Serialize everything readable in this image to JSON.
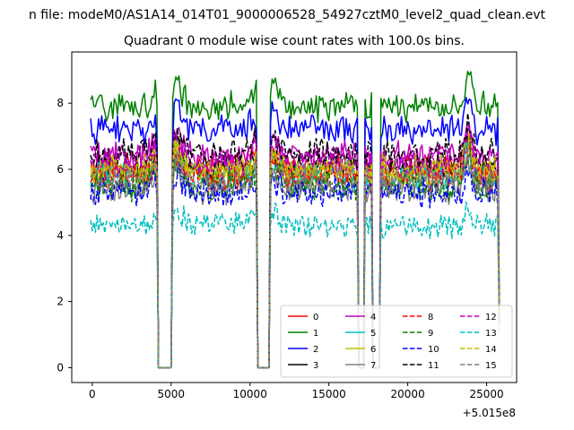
{
  "figure": {
    "suptitle": "n file: modeM0/AS1A14_014T01_9000006528_54927cztM0_level2_quad_clean.evt"
  },
  "chart_data": {
    "type": "line",
    "title": "Quadrant 0 module wise count rates with 100.0s bins.",
    "xlabel": "",
    "ylabel": "",
    "x_offset_label": "+5.015e8",
    "xlim": [
      -1300,
      26900
    ],
    "ylim": [
      -0.45,
      9.55
    ],
    "xticks": [
      0,
      5000,
      10000,
      15000,
      20000,
      25000
    ],
    "xtick_labels": [
      "0",
      "5000",
      "10000",
      "15000",
      "20000",
      "25000"
    ],
    "yticks": [
      0,
      2,
      4,
      6,
      8
    ],
    "ytick_labels": [
      "0",
      "2",
      "4",
      "6",
      "8"
    ],
    "x_range": [
      -100,
      25800
    ],
    "bin_seconds": 100,
    "gaps": [
      {
        "start": 4100,
        "end": 5100
      },
      {
        "start": 10450,
        "end": 11300
      },
      {
        "start": 16850,
        "end": 17300
      },
      {
        "start": 17700,
        "end": 18250
      }
    ],
    "legend": {
      "location": "lower-right",
      "ncol": 4
    },
    "series": [
      {
        "name": "0",
        "color": "#ff0000",
        "dash": "solid",
        "mean": 6.0,
        "amp": 0.3
      },
      {
        "name": "1",
        "color": "#008000",
        "dash": "solid",
        "mean": 7.9,
        "amp": 0.3
      },
      {
        "name": "2",
        "color": "#0000ff",
        "dash": "solid",
        "mean": 7.2,
        "amp": 0.3
      },
      {
        "name": "3",
        "color": "#000000",
        "dash": "solid",
        "mean": 6.1,
        "amp": 0.28
      },
      {
        "name": "4",
        "color": "#bf00bf",
        "dash": "solid",
        "mean": 6.4,
        "amp": 0.3
      },
      {
        "name": "5",
        "color": "#00bfbf",
        "dash": "solid",
        "mean": 5.8,
        "amp": 0.3
      },
      {
        "name": "6",
        "color": "#bfbf00",
        "dash": "solid",
        "mean": 5.9,
        "amp": 0.3
      },
      {
        "name": "7",
        "color": "#808080",
        "dash": "solid",
        "mean": 5.4,
        "amp": 0.3
      },
      {
        "name": "8",
        "color": "#ff0000",
        "dash": "dashed",
        "mean": 5.8,
        "amp": 0.3
      },
      {
        "name": "9",
        "color": "#008000",
        "dash": "dashed",
        "mean": 5.5,
        "amp": 0.3
      },
      {
        "name": "10",
        "color": "#0000ff",
        "dash": "dashed",
        "mean": 5.3,
        "amp": 0.3
      },
      {
        "name": "11",
        "color": "#000000",
        "dash": "dashed",
        "mean": 6.5,
        "amp": 0.3
      },
      {
        "name": "12",
        "color": "#bf00bf",
        "dash": "dashed",
        "mean": 6.2,
        "amp": 0.3
      },
      {
        "name": "13",
        "color": "#00bfbf",
        "dash": "dashed",
        "mean": 4.3,
        "amp": 0.25
      },
      {
        "name": "14",
        "color": "#bfbf00",
        "dash": "dashed",
        "mean": 6.0,
        "amp": 0.3
      },
      {
        "name": "15",
        "color": "#808080",
        "dash": "dashed",
        "mean": 5.6,
        "amp": 0.3
      }
    ]
  }
}
